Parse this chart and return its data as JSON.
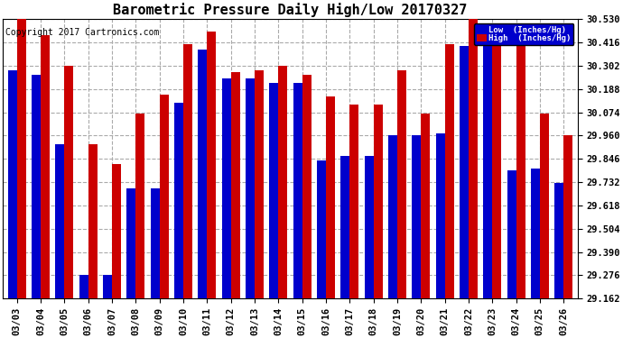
{
  "title": "Barometric Pressure Daily High/Low 20170327",
  "copyright": "Copyright 2017 Cartronics.com",
  "ylabel_low": "Low  (Inches/Hg)",
  "ylabel_high": "High  (Inches/Hg)",
  "dates": [
    "03/03",
    "03/04",
    "03/05",
    "03/06",
    "03/07",
    "03/08",
    "03/09",
    "03/10",
    "03/11",
    "03/12",
    "03/13",
    "03/14",
    "03/15",
    "03/16",
    "03/17",
    "03/18",
    "03/19",
    "03/20",
    "03/21",
    "03/22",
    "03/23",
    "03/24",
    "03/25",
    "03/26"
  ],
  "low_values": [
    30.28,
    30.26,
    29.92,
    29.28,
    29.28,
    29.7,
    29.7,
    30.12,
    30.38,
    30.24,
    30.24,
    30.22,
    30.22,
    29.84,
    29.86,
    29.86,
    29.96,
    29.96,
    29.97,
    30.4,
    30.4,
    29.79,
    29.8,
    29.73
  ],
  "high_values": [
    30.53,
    30.45,
    30.3,
    29.92,
    29.82,
    30.07,
    30.16,
    30.41,
    30.47,
    30.27,
    30.28,
    30.3,
    30.26,
    30.15,
    30.11,
    30.11,
    30.28,
    30.07,
    30.41,
    30.53,
    30.42,
    30.42,
    30.07,
    29.96
  ],
  "low_color": "#0000cc",
  "high_color": "#cc0000",
  "bg_color": "#ffffff",
  "plot_bg_color": "#ffffff",
  "grid_color": "#aaaaaa",
  "ylim_min": 29.162,
  "ylim_max": 30.53,
  "yticks": [
    29.162,
    29.276,
    29.39,
    29.504,
    29.618,
    29.732,
    29.846,
    29.96,
    30.074,
    30.188,
    30.302,
    30.416,
    30.53
  ],
  "title_fontsize": 11,
  "tick_fontsize": 7.5,
  "copyright_fontsize": 7,
  "bar_width": 0.38
}
